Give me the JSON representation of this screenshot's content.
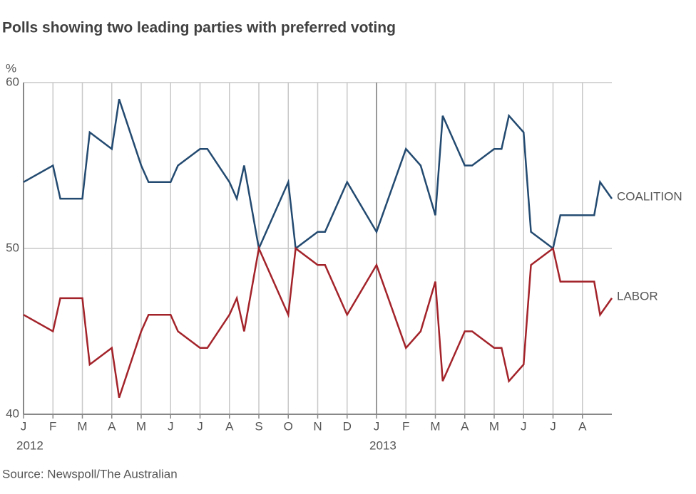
{
  "chart_data": {
    "type": "line",
    "title": "Polls showing two leading parties with preferred voting",
    "y_label": "%",
    "source": "Source: Newspoll/The Australian",
    "x": [
      0,
      1,
      1.25,
      2,
      2.25,
      3,
      3.25,
      4,
      4.25,
      5,
      5.25,
      6,
      6.25,
      7,
      7.25,
      7.5,
      8,
      9,
      9.25,
      10,
      10.25,
      11,
      12,
      13,
      13.5,
      14,
      14.25,
      15,
      15.25,
      16,
      16.25,
      16.5,
      17,
      17.25,
      18,
      18.25,
      19,
      19.4,
      19.6,
      20
    ],
    "series": [
      {
        "name": "COALITION",
        "color": "#234a70",
        "values": [
          54,
          55,
          53,
          53,
          57,
          56,
          59,
          55,
          54,
          54,
          55,
          56,
          56,
          54,
          53,
          55,
          50,
          54,
          50,
          51,
          51,
          54,
          51,
          56,
          55,
          52,
          58,
          55,
          55,
          56,
          56,
          58,
          57,
          51,
          50,
          52,
          52,
          52,
          54,
          53
        ]
      },
      {
        "name": "LABOR",
        "color": "#a3232a",
        "values": [
          46,
          45,
          47,
          47,
          43,
          44,
          41,
          45,
          46,
          46,
          45,
          44,
          44,
          46,
          47,
          45,
          50,
          46,
          50,
          49,
          49,
          46,
          49,
          44,
          45,
          48,
          42,
          45,
          45,
          44,
          44,
          42,
          43,
          49,
          50,
          48,
          48,
          48,
          46,
          47
        ]
      }
    ],
    "xlim": [
      0,
      20
    ],
    "xticks": [
      {
        "value": 0,
        "label": "J"
      },
      {
        "value": 1,
        "label": "F"
      },
      {
        "value": 2,
        "label": "M"
      },
      {
        "value": 3,
        "label": "A"
      },
      {
        "value": 4,
        "label": "M"
      },
      {
        "value": 5,
        "label": "J"
      },
      {
        "value": 6,
        "label": "J"
      },
      {
        "value": 7,
        "label": "A"
      },
      {
        "value": 8,
        "label": "S"
      },
      {
        "value": 9,
        "label": "O"
      },
      {
        "value": 10,
        "label": "N"
      },
      {
        "value": 11,
        "label": "D"
      },
      {
        "value": 12,
        "label": "J"
      },
      {
        "value": 13,
        "label": "F"
      },
      {
        "value": 14,
        "label": "M"
      },
      {
        "value": 15,
        "label": "A"
      },
      {
        "value": 16,
        "label": "M"
      },
      {
        "value": 17,
        "label": "J"
      },
      {
        "value": 18,
        "label": "J"
      },
      {
        "value": 19,
        "label": "A"
      }
    ],
    "year_ticks": [
      {
        "value": 0,
        "label": "2012"
      },
      {
        "value": 12,
        "label": "2013"
      }
    ],
    "ylim": [
      40,
      60
    ],
    "yticks": [
      40,
      50,
      60
    ],
    "grid": true
  }
}
